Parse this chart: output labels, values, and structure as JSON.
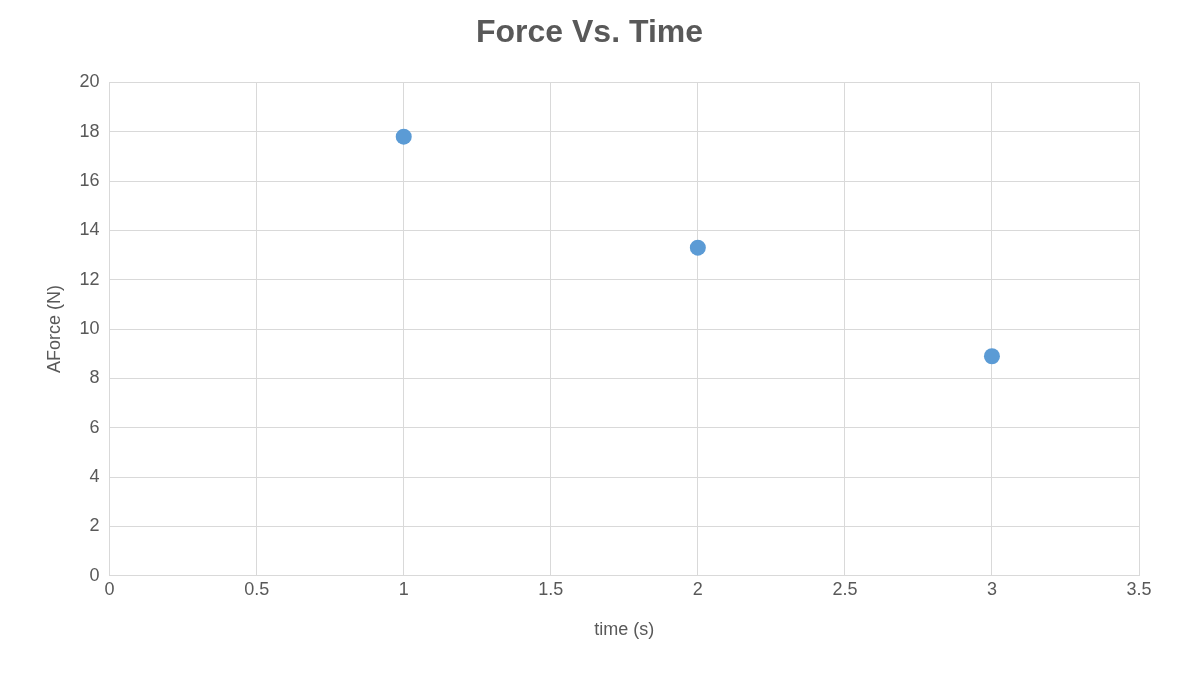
{
  "chart_data": {
    "type": "scatter",
    "title": "Force Vs. Time",
    "xlabel": "time (s)",
    "ylabel": "AForce (N)",
    "x": [
      1,
      2,
      3
    ],
    "series": [
      {
        "color": "#5b9bd5",
        "values": [
          17.8,
          13.3,
          8.9
        ]
      }
    ],
    "xlim": [
      0,
      3.5
    ],
    "xticks": [
      0,
      0.5,
      1,
      1.5,
      2,
      2.5,
      3,
      3.5
    ],
    "ylim": [
      0,
      20
    ],
    "yticks": [
      0,
      2,
      4,
      6,
      8,
      10,
      12,
      14,
      16,
      18,
      20
    ],
    "grid": true,
    "marker": "circle"
  }
}
